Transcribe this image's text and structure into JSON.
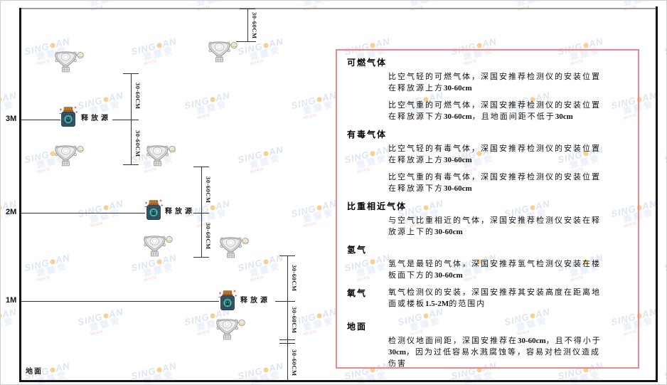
{
  "watermark": {
    "brand_left": "SING",
    "brand_right": "AN",
    "cjk": "深国安",
    "subtext": "681434"
  },
  "diagram": {
    "height_marks": [
      {
        "label": "3M"
      },
      {
        "label": "2M"
      },
      {
        "label": "1M"
      }
    ],
    "ground_label": "地面",
    "source_label": "释放源",
    "dim_label": "30-60CM"
  },
  "panel": {
    "sections": [
      {
        "heading": "可燃气体",
        "paras": [
          [
            {
              "t": "比空气轻的可燃气体，深国安推荐检测仪的安装位置在释放源上方"
            },
            {
              "t": "30-60cm",
              "b": 1
            }
          ],
          [
            {
              "t": "比空气重的可燃气体，深国安推荐检测仪的安装位置在释放源下方"
            },
            {
              "t": "30-60cm",
              "b": 1
            },
            {
              "t": "，且地面间距不低于"
            },
            {
              "t": "30cm",
              "b": 1
            }
          ]
        ]
      },
      {
        "heading": "有毒气体",
        "paras": [
          [
            {
              "t": "比空气轻的有毒气体，深国安推荐检测仪的安装位置在释放源上方"
            },
            {
              "t": "30-60cm",
              "b": 1
            }
          ],
          [
            {
              "t": "比空气重的有毒气体，深国安推荐检测仪的安装位置在释放源下方"
            },
            {
              "t": "30-60cm",
              "b": 1
            }
          ]
        ]
      },
      {
        "heading": "比重相近气体",
        "paras": [
          [
            {
              "t": "与空气比重相近的气体，深国安推荐检测仪安装在释放源上下的"
            },
            {
              "t": "30-60cm",
              "b": 1
            }
          ]
        ]
      },
      {
        "heading": "氢气",
        "paras": [
          [
            {
              "t": "氢气是最轻的气体，深国安推荐氢气检测仪安装在楼板面下方的"
            },
            {
              "t": "30-60cm",
              "b": 1
            }
          ]
        ]
      },
      {
        "heading": "氧气",
        "inline": true,
        "paras": [
          [
            {
              "t": "氧气检测仪的安装，深国安推荐其安装高度在距离地面或楼板"
            },
            {
              "t": "1.5-2M",
              "b": 1
            },
            {
              "t": "的范围内"
            }
          ]
        ]
      },
      {
        "heading": "地面",
        "paras": [
          [
            {
              "t": "检测仪地面间距，深国安推荐在"
            },
            {
              "t": "30-60cm",
              "b": 1
            },
            {
              "t": "，且不得小于"
            },
            {
              "t": "30cm",
              "b": 1
            },
            {
              "t": "，因为过低容易水溅腐蚀等，容易对检测仪造成伤害"
            }
          ]
        ]
      }
    ]
  }
}
